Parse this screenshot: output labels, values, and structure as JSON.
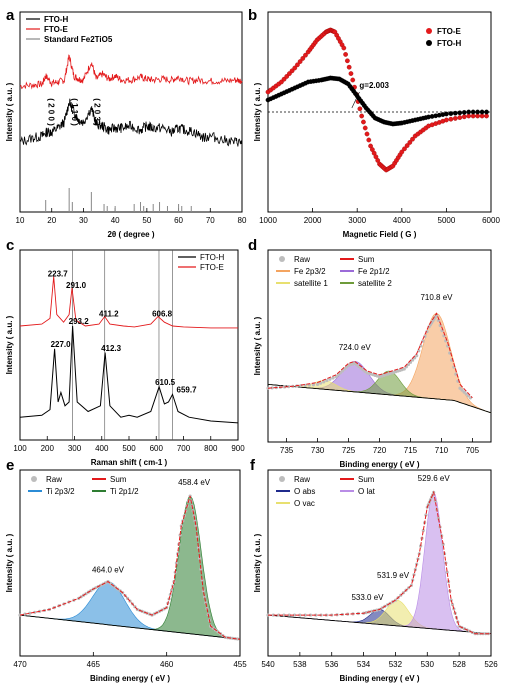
{
  "chart_data": [
    {
      "panel": "a",
      "type": "line",
      "xlabel": "2θ ( degree )",
      "ylabel": "Intensity ( a.u. )",
      "xlim": [
        10,
        80
      ],
      "xticks": [
        10,
        20,
        30,
        40,
        50,
        60,
        70,
        80
      ],
      "legend": [
        "FTO-H",
        "FTO-E",
        "Standard Fe2TiO5"
      ],
      "legend_placement": "top-left",
      "peak_labels": [
        {
          "text": "( 2 0 0 )",
          "x": 18.1
        },
        {
          "text": "( 1 1 0 )",
          "x": 25.5
        },
        {
          "text": "( 2 0 3 )",
          "x": 32.5
        }
      ],
      "series": [
        {
          "name": "FTO-E",
          "color": "#e31a1c",
          "x": [
            10,
            14,
            17,
            18.1,
            20,
            22,
            24,
            25.5,
            27,
            28.5,
            30,
            32.5,
            34,
            36,
            38,
            40,
            42,
            45,
            48,
            50,
            52,
            55,
            58,
            60,
            63,
            66,
            70,
            74,
            78,
            80
          ],
          "y": [
            0.63,
            0.635,
            0.64,
            0.68,
            0.645,
            0.65,
            0.66,
            0.78,
            0.68,
            0.665,
            0.66,
            0.75,
            0.665,
            0.69,
            0.665,
            0.68,
            0.66,
            0.66,
            0.675,
            0.665,
            0.66,
            0.665,
            0.66,
            0.675,
            0.655,
            0.66,
            0.655,
            0.655,
            0.66,
            0.655
          ]
        },
        {
          "name": "FTO-H",
          "color": "#000000",
          "x": [
            10,
            14,
            17,
            18.5,
            20,
            22,
            24,
            25.5,
            27,
            28.5,
            30,
            32.5,
            34,
            36,
            38,
            40,
            42,
            45,
            48,
            50,
            52,
            55,
            58,
            60,
            62,
            65,
            68,
            70,
            74,
            78,
            80
          ],
          "y": [
            0.35,
            0.37,
            0.38,
            0.4,
            0.4,
            0.42,
            0.45,
            0.55,
            0.5,
            0.46,
            0.45,
            0.52,
            0.44,
            0.43,
            0.41,
            0.42,
            0.42,
            0.43,
            0.41,
            0.43,
            0.42,
            0.42,
            0.4,
            0.42,
            0.41,
            0.4,
            0.37,
            0.38,
            0.36,
            0.35,
            0.35
          ]
        },
        {
          "name": "Standard Fe2TiO5",
          "color": "#888888",
          "type": "stick",
          "x": [
            18.1,
            25.5,
            26.5,
            32.5,
            36.5,
            37.5,
            40,
            46,
            48,
            49,
            52,
            54,
            56.5,
            60,
            61,
            64
          ],
          "y": [
            0.06,
            0.12,
            0.05,
            0.1,
            0.04,
            0.03,
            0.03,
            0.04,
            0.05,
            0.03,
            0.04,
            0.05,
            0.03,
            0.04,
            0.03,
            0.03
          ]
        }
      ]
    },
    {
      "panel": "b",
      "type": "scatter",
      "xlabel": "Magnetic Field ( G )",
      "ylabel": "Intensity ( a.u. )",
      "xlim": [
        1000,
        6000
      ],
      "xticks": [
        1000,
        2000,
        3000,
        4000,
        5000,
        6000
      ],
      "annotation": "g=2.003",
      "legend": [
        "FTO-E",
        "FTO-H"
      ],
      "legend_placement": "top-right",
      "series": [
        {
          "name": "FTO-E",
          "color": "#e31a1c",
          "x": [
            1000,
            1300,
            1600,
            1900,
            2100,
            2300,
            2400,
            2500,
            2700,
            2900,
            3100,
            3300,
            3500,
            3650,
            3800,
            4000,
            4300,
            4600,
            5000,
            5500,
            6000
          ],
          "y": [
            0.6,
            0.65,
            0.72,
            0.8,
            0.86,
            0.9,
            0.91,
            0.9,
            0.82,
            0.66,
            0.48,
            0.33,
            0.24,
            0.21,
            0.23,
            0.3,
            0.38,
            0.43,
            0.46,
            0.48,
            0.48
          ]
        },
        {
          "name": "FTO-H",
          "color": "#000000",
          "x": [
            1000,
            1300,
            1600,
            1900,
            2200,
            2400,
            2600,
            2800,
            3000,
            3200,
            3400,
            3600,
            3800,
            4000,
            4300,
            4600,
            5000,
            5500,
            6000
          ],
          "y": [
            0.56,
            0.59,
            0.62,
            0.65,
            0.66,
            0.67,
            0.665,
            0.64,
            0.58,
            0.52,
            0.47,
            0.45,
            0.44,
            0.445,
            0.46,
            0.475,
            0.49,
            0.5,
            0.5
          ]
        }
      ]
    },
    {
      "panel": "c",
      "type": "line",
      "xlabel": "Raman shift ( cm-1 )",
      "ylabel": "Intensity ( a.u. )",
      "xlim": [
        100,
        900
      ],
      "xticks": [
        100,
        200,
        300,
        400,
        500,
        600,
        700,
        800,
        900
      ],
      "legend": [
        "FTO-H",
        "FTO-E"
      ],
      "legend_placement": "top-right",
      "vlines": [
        293,
        411,
        610,
        660
      ],
      "peak_labels_E": [
        "223.7",
        "291.0",
        "411.2",
        "606.8"
      ],
      "peak_labels_H": [
        "227.0",
        "293.2",
        "412.3",
        "610.5",
        "659.7"
      ],
      "series": [
        {
          "name": "FTO-E",
          "color": "#e31a1c",
          "x": [
            100,
            180,
            210,
            223.7,
            235,
            260,
            280,
            291,
            305,
            340,
            390,
            411,
            430,
            480,
            520,
            580,
            606.8,
            630,
            660,
            700,
            800,
            900
          ],
          "y": [
            0.6,
            0.61,
            0.64,
            0.86,
            0.66,
            0.62,
            0.66,
            0.8,
            0.63,
            0.6,
            0.61,
            0.65,
            0.61,
            0.6,
            0.595,
            0.61,
            0.65,
            0.62,
            0.6,
            0.595,
            0.59,
            0.59
          ]
        },
        {
          "name": "FTO-H",
          "color": "#000000",
          "x": [
            100,
            180,
            210,
            227,
            240,
            250,
            265,
            280,
            293.2,
            310,
            350,
            395,
            412.3,
            430,
            470,
            500,
            530,
            580,
            610.5,
            630,
            645,
            659.7,
            680,
            720,
            800,
            900
          ],
          "y": [
            0.12,
            0.13,
            0.16,
            0.48,
            0.2,
            0.25,
            0.18,
            0.2,
            0.6,
            0.2,
            0.15,
            0.18,
            0.46,
            0.18,
            0.12,
            0.13,
            0.12,
            0.15,
            0.28,
            0.19,
            0.2,
            0.24,
            0.15,
            0.12,
            0.1,
            0.09
          ]
        }
      ]
    },
    {
      "panel": "d",
      "type": "area",
      "xlabel": "Binding energy ( eV )",
      "ylabel": "Intensity ( a.u. )",
      "xlim": [
        738,
        702
      ],
      "xticks": [
        735,
        730,
        725,
        720,
        715,
        710,
        705
      ],
      "legend": [
        "Raw",
        "Sum",
        "Fe 2p3/2",
        "Fe 2p1/2",
        "satellite 1",
        "satellite 2"
      ],
      "peak_labels": [
        {
          "text": "724.0 eV",
          "x": 724.0
        },
        {
          "text": "710.8 eV",
          "x": 710.8
        }
      ],
      "series": [
        {
          "name": "Raw",
          "color": "#bdbdbd",
          "x": [
            738,
            734,
            730,
            727,
            725,
            724,
            722,
            720,
            718,
            716,
            714,
            712,
            710.8,
            709,
            707,
            705
          ],
          "y": [
            0.28,
            0.29,
            0.3,
            0.34,
            0.4,
            0.41,
            0.36,
            0.34,
            0.36,
            0.38,
            0.45,
            0.6,
            0.66,
            0.5,
            0.28,
            0.22
          ]
        },
        {
          "name": "Sum",
          "color": "#e31a1c",
          "x": [
            738,
            734,
            730,
            727,
            725,
            724,
            722,
            720,
            718,
            716,
            714,
            712,
            710.8,
            709,
            707,
            705
          ],
          "y": [
            0.28,
            0.29,
            0.31,
            0.35,
            0.41,
            0.42,
            0.37,
            0.35,
            0.37,
            0.39,
            0.46,
            0.61,
            0.67,
            0.52,
            0.3,
            0.23
          ]
        },
        {
          "name": "Fe 2p3/2",
          "color": "#f4a460",
          "center": 710.8,
          "height": 0.67,
          "width": 2.2
        },
        {
          "name": "Fe 2p1/2",
          "color": "#9b6bd8",
          "center": 724.0,
          "height": 0.42,
          "width": 2.2
        },
        {
          "name": "satellite 1",
          "color": "#e8e070",
          "center": 729.0,
          "height": 0.32,
          "width": 1.8
        },
        {
          "name": "satellite 2",
          "color": "#6e9b3a",
          "center": 718.5,
          "height": 0.37,
          "width": 1.8
        }
      ]
    },
    {
      "panel": "e",
      "type": "area",
      "xlabel": "Binding energy ( eV )",
      "ylabel": "Intensity ( a.u. )",
      "xlim": [
        470,
        455
      ],
      "xticks": [
        470,
        465,
        460,
        455
      ],
      "legend": [
        "Raw",
        "Sum",
        "Ti 2p3/2",
        "Ti 2p1/2"
      ],
      "peak_labels": [
        {
          "text": "464.0 eV",
          "x": 464.0
        },
        {
          "text": "458.4 eV",
          "x": 458.4
        }
      ],
      "series": [
        {
          "name": "Raw",
          "color": "#bdbdbd",
          "x": [
            470,
            468,
            466,
            465,
            464,
            463,
            462,
            461,
            460,
            459.5,
            459,
            458.4,
            458,
            457.5,
            457,
            456,
            455
          ],
          "y": [
            0.22,
            0.25,
            0.31,
            0.36,
            0.4,
            0.34,
            0.25,
            0.22,
            0.26,
            0.4,
            0.7,
            0.86,
            0.7,
            0.35,
            0.16,
            0.1,
            0.09
          ]
        },
        {
          "name": "Sum",
          "color": "#e31a1c",
          "x": [
            470,
            468,
            466,
            465,
            464,
            463,
            462,
            461,
            460,
            459.5,
            459,
            458.4,
            458,
            457.5,
            457,
            456,
            455
          ],
          "y": [
            0.22,
            0.25,
            0.31,
            0.36,
            0.4,
            0.34,
            0.25,
            0.22,
            0.26,
            0.4,
            0.7,
            0.86,
            0.7,
            0.35,
            0.16,
            0.1,
            0.09
          ]
        },
        {
          "name": "Ti 2p3/2",
          "color": "#2b8cd6",
          "center": 464.0,
          "height": 0.4,
          "width": 1.1
        },
        {
          "name": "Ti 2p1/2",
          "color": "#2e7d32",
          "center": 458.4,
          "height": 0.86,
          "width": 0.75
        }
      ]
    },
    {
      "panel": "f",
      "type": "area",
      "xlabel": "Binding energy ( eV )",
      "ylabel": "Intensity ( a.u. )",
      "xlim": [
        540,
        526
      ],
      "xticks": [
        540,
        538,
        536,
        534,
        532,
        530,
        528,
        526
      ],
      "legend": [
        "Raw",
        "Sum",
        "O abs",
        "O lat",
        "O vac"
      ],
      "peak_labels": [
        {
          "text": "529.6 eV",
          "x": 529.6
        },
        {
          "text": "531.9 eV",
          "x": 531.9
        },
        {
          "text": "533.0 eV",
          "x": 533.0
        }
      ],
      "series": [
        {
          "name": "Raw",
          "color": "#bdbdbd",
          "x": [
            540,
            538,
            536,
            534,
            533,
            532,
            531,
            530.5,
            530,
            529.6,
            529,
            528.5,
            528,
            527,
            526
          ],
          "y": [
            0.22,
            0.22,
            0.22,
            0.23,
            0.25,
            0.3,
            0.38,
            0.55,
            0.8,
            0.88,
            0.6,
            0.3,
            0.16,
            0.12,
            0.12
          ]
        },
        {
          "name": "Sum",
          "color": "#e31a1c",
          "x": [
            540,
            538,
            536,
            534,
            533,
            532,
            531,
            530.5,
            530,
            529.6,
            529,
            528.5,
            528,
            527,
            526
          ],
          "y": [
            0.22,
            0.22,
            0.22,
            0.23,
            0.25,
            0.3,
            0.38,
            0.55,
            0.8,
            0.88,
            0.6,
            0.3,
            0.16,
            0.12,
            0.12
          ]
        },
        {
          "name": "O abs",
          "color": "#1f2a8c",
          "center": 533.0,
          "height": 0.25,
          "width": 0.6
        },
        {
          "name": "O vac",
          "color": "#e8e070",
          "center": 531.9,
          "height": 0.3,
          "width": 0.7
        },
        {
          "name": "O lat",
          "color": "#b98de6",
          "center": 529.6,
          "height": 0.88,
          "width": 0.55
        }
      ]
    }
  ]
}
